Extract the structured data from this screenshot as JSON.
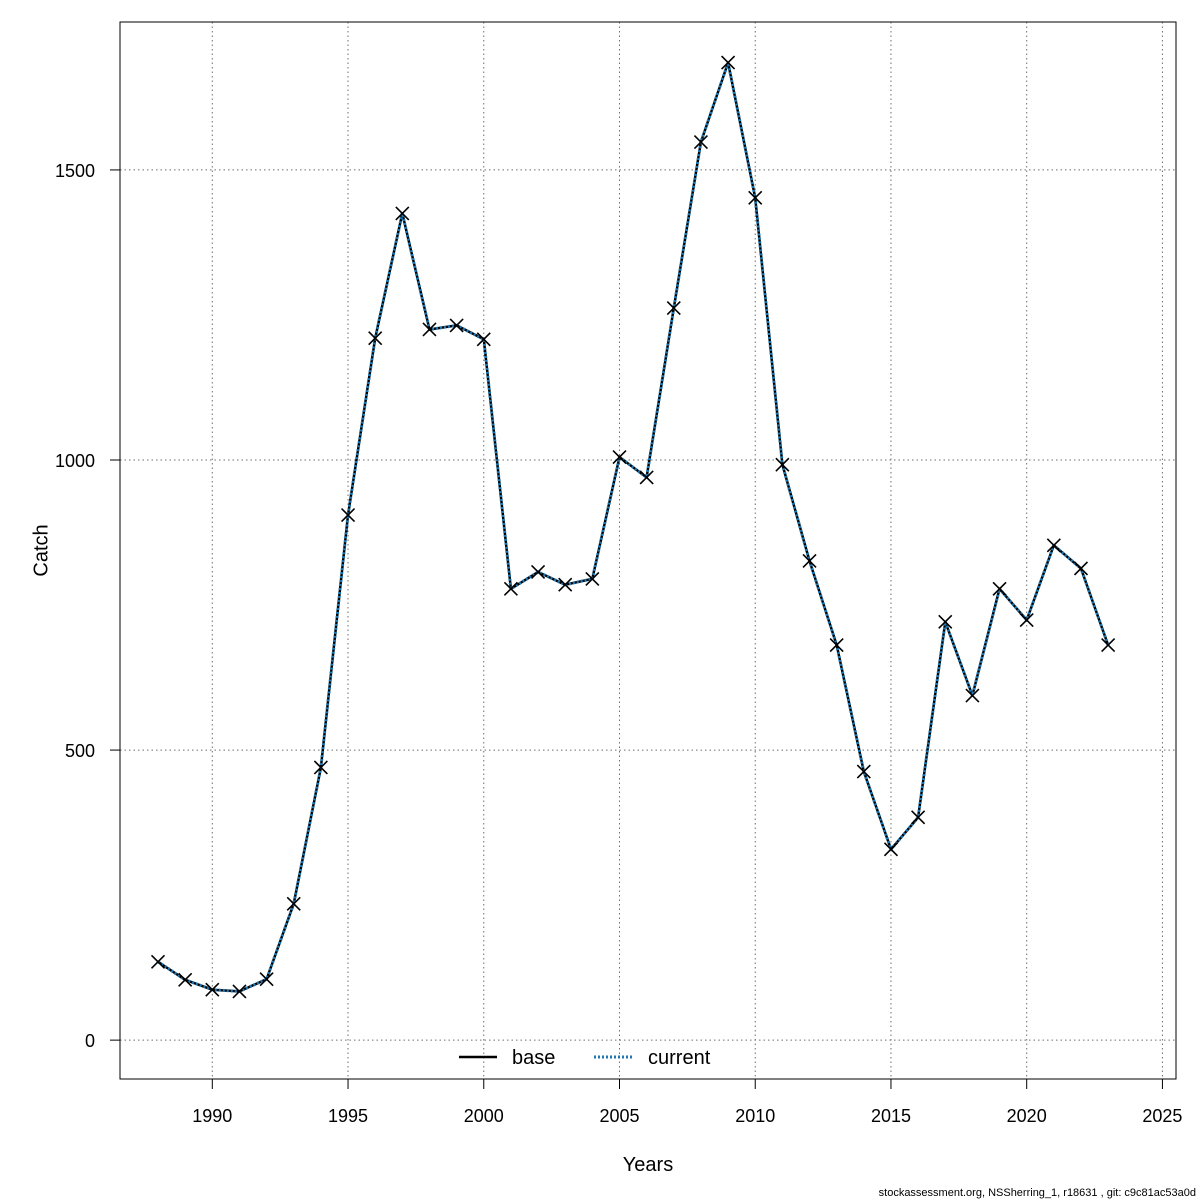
{
  "chart_data": {
    "type": "line",
    "xlabel": "Years",
    "ylabel": "Catch",
    "xlim": [
      1986.6,
      2025.5
    ],
    "ylim": [
      -67,
      1755
    ],
    "x_ticks": [
      1990,
      1995,
      2000,
      2005,
      2010,
      2015,
      2020,
      2025
    ],
    "y_ticks": [
      0,
      500,
      1000,
      1500
    ],
    "grid": true,
    "grid_style": "dotted",
    "legend_position": "bottom-center",
    "x": [
      1988,
      1989,
      1990,
      1991,
      1992,
      1993,
      1994,
      1995,
      1996,
      1997,
      1998,
      1999,
      2000,
      2001,
      2002,
      2003,
      2004,
      2005,
      2006,
      2007,
      2008,
      2009,
      2010,
      2011,
      2012,
      2013,
      2014,
      2015,
      2016,
      2017,
      2018,
      2019,
      2020,
      2021,
      2022,
      2023
    ],
    "series": [
      {
        "name": "base",
        "color": "#000000",
        "line_style": "solid",
        "values": [
          135,
          104,
          87,
          84,
          105,
          235,
          470,
          905,
          1210,
          1425,
          1225,
          1232,
          1208,
          778,
          807,
          785,
          795,
          1005,
          970,
          1262,
          1548,
          1685,
          1452,
          992,
          826,
          681,
          463,
          329,
          384,
          721,
          594,
          778,
          724,
          853,
          813,
          681
        ]
      },
      {
        "name": "current",
        "color": "#1f78b4",
        "line_style": "dotted",
        "values": [
          135,
          104,
          87,
          84,
          105,
          235,
          470,
          905,
          1210,
          1425,
          1225,
          1232,
          1208,
          778,
          807,
          785,
          795,
          1005,
          970,
          1262,
          1548,
          1685,
          1452,
          992,
          826,
          681,
          463,
          329,
          384,
          721,
          594,
          778,
          724,
          853,
          813,
          681
        ]
      }
    ],
    "marker": "x",
    "footer": "stockassessment.org, NSSherring_1, r18631 , git: c9c81ac53a0d"
  }
}
